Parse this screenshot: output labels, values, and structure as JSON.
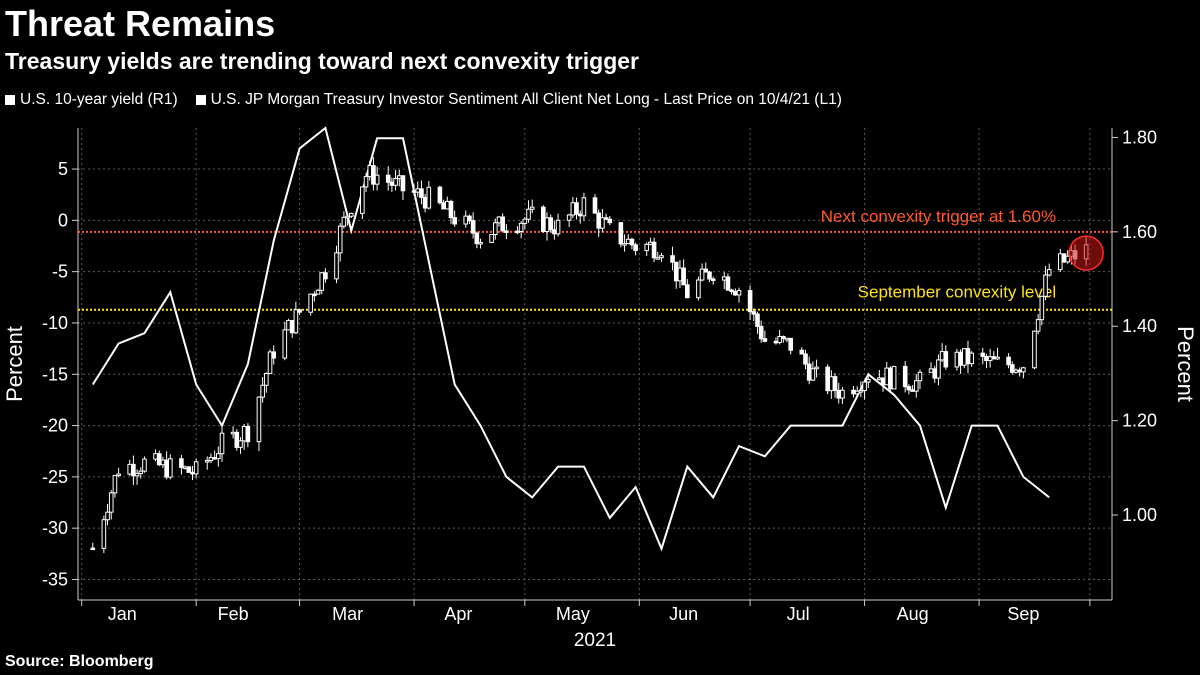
{
  "title": "Threat Remains",
  "subtitle": "Treasury yields are trending toward next convexity trigger",
  "legend": [
    {
      "label": "U.S. 10-year yield (R1)",
      "color": "#ffffff"
    },
    {
      "label": "U.S. JP Morgan Treasury Investor Sentiment All Client Net Long - Last Price on 10/4/21 (L1)",
      "color": "#ffffff"
    }
  ],
  "source": "Source: Bloomberg",
  "chart_data": {
    "type": "line",
    "x_label": "2021",
    "y_left_label": "Percent",
    "y_right_label": "Percent",
    "months": [
      "Jan",
      "Feb",
      "Mar",
      "Apr",
      "May",
      "Jun",
      "Jul",
      "Aug",
      "Sep"
    ],
    "month_label_days": [
      12,
      42,
      73,
      103,
      134,
      164,
      195,
      226,
      256
    ],
    "month_gridline_days": [
      1,
      32,
      60,
      91,
      121,
      152,
      182,
      213,
      244,
      274
    ],
    "x_range_days": [
      0,
      280
    ],
    "left_axis": {
      "ticks": [
        5,
        0,
        -5,
        -10,
        -15,
        -20,
        -25,
        -30,
        -35
      ],
      "range": [
        -37,
        9
      ]
    },
    "right_axis": {
      "ticks": [
        "1.80",
        "1.60",
        "1.40",
        "1.20",
        "1.00"
      ],
      "range": [
        0.82,
        1.82
      ]
    },
    "annotations": [
      {
        "text": "Next convexity trigger at 1.60%",
        "axis": "right",
        "value": 1.6,
        "color": "#ff5a2c"
      },
      {
        "text": "September convexity level",
        "axis": "right",
        "value": 1.435,
        "color": "#ffe21a"
      }
    ],
    "highlight": {
      "day": 273,
      "axis": "right",
      "value": 1.555,
      "color": "#ff2a2a"
    },
    "series": [
      {
        "name": "U.S. JP Morgan Treasury Investor Sentiment All Client Net Long - Last Price on 10/4/21",
        "axis": "left",
        "color": "#ffffff",
        "points": [
          [
            4,
            -16
          ],
          [
            11,
            -12
          ],
          [
            18,
            -11
          ],
          [
            25,
            -7
          ],
          [
            32,
            -16
          ],
          [
            39,
            -20
          ],
          [
            46,
            -14
          ],
          [
            53,
            -2
          ],
          [
            60,
            7
          ],
          [
            67,
            9
          ],
          [
            74,
            -1
          ],
          [
            81,
            8
          ],
          [
            88,
            8
          ],
          [
            95,
            -4
          ],
          [
            102,
            -16
          ],
          [
            109,
            -20
          ],
          [
            116,
            -25
          ],
          [
            123,
            -27
          ],
          [
            130,
            -24
          ],
          [
            137,
            -24
          ],
          [
            144,
            -29
          ],
          [
            151,
            -26
          ],
          [
            158,
            -32
          ],
          [
            165,
            -24
          ],
          [
            172,
            -27
          ],
          [
            179,
            -22
          ],
          [
            186,
            -23
          ],
          [
            193,
            -20
          ],
          [
            200,
            -20
          ],
          [
            207,
            -20
          ],
          [
            214,
            -15
          ],
          [
            221,
            -17
          ],
          [
            228,
            -20
          ],
          [
            235,
            -28
          ],
          [
            242,
            -20
          ],
          [
            249,
            -20
          ],
          [
            256,
            -25
          ],
          [
            263,
            -27
          ]
        ]
      },
      {
        "name": "U.S. 10-year yield",
        "axis": "right",
        "color": "#ffffff",
        "style": "candlestick",
        "close": [
          [
            4,
            0.93
          ],
          [
            11,
            1.1
          ],
          [
            18,
            1.11
          ],
          [
            25,
            1.1
          ],
          [
            32,
            1.09
          ],
          [
            39,
            1.15
          ],
          [
            46,
            1.18
          ],
          [
            53,
            1.35
          ],
          [
            60,
            1.43
          ],
          [
            67,
            1.52
          ],
          [
            74,
            1.66
          ],
          [
            78,
            1.72
          ],
          [
            81,
            1.72
          ],
          [
            88,
            1.69
          ],
          [
            95,
            1.67
          ],
          [
            102,
            1.63
          ],
          [
            109,
            1.59
          ],
          [
            116,
            1.62
          ],
          [
            123,
            1.63
          ],
          [
            130,
            1.61
          ],
          [
            137,
            1.66
          ],
          [
            144,
            1.6
          ],
          [
            151,
            1.57
          ],
          [
            158,
            1.57
          ],
          [
            165,
            1.47
          ],
          [
            172,
            1.52
          ],
          [
            179,
            1.48
          ],
          [
            186,
            1.37
          ],
          [
            193,
            1.36
          ],
          [
            200,
            1.29
          ],
          [
            207,
            1.26
          ],
          [
            214,
            1.3
          ],
          [
            221,
            1.29
          ],
          [
            228,
            1.28
          ],
          [
            235,
            1.33
          ],
          [
            242,
            1.33
          ],
          [
            249,
            1.32
          ],
          [
            256,
            1.32
          ],
          [
            263,
            1.52
          ],
          [
            270,
            1.55
          ],
          [
            273,
            1.56
          ]
        ]
      }
    ]
  }
}
